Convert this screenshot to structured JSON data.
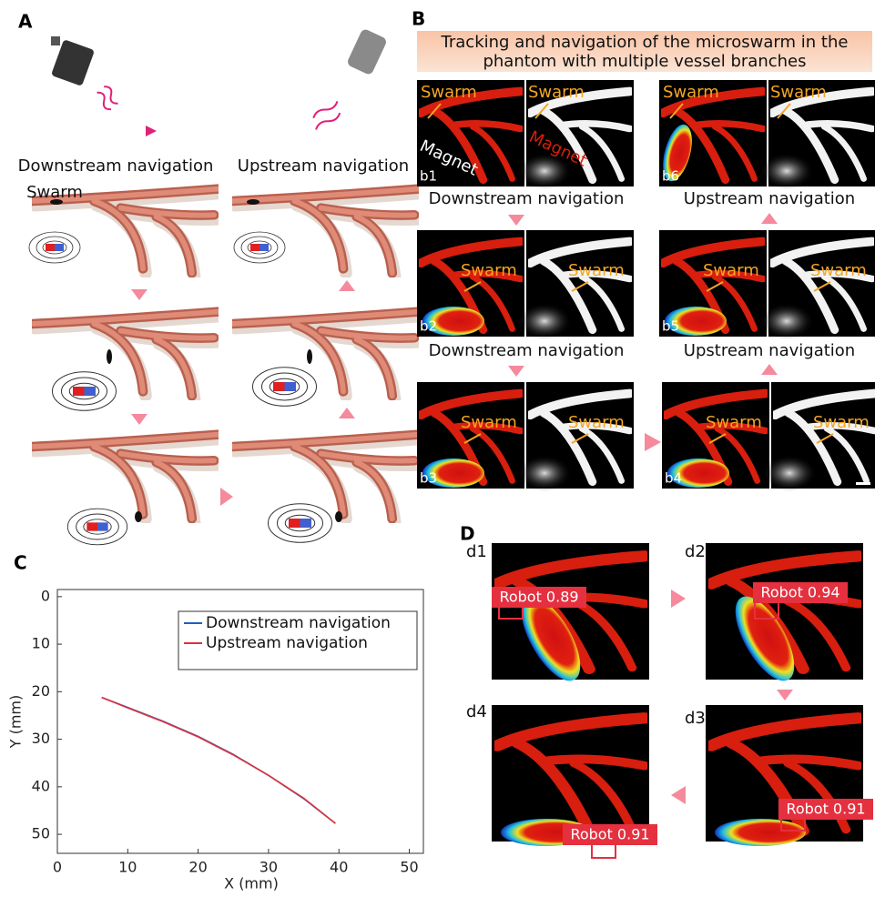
{
  "panel_labels": [
    "A",
    "B",
    "C",
    "D"
  ],
  "panel_a": {
    "downstream": "Downstream navigation",
    "upstream": "Upstream navigation",
    "swarm": "Swarm"
  },
  "panel_b": {
    "title_lines": [
      "Tracking and navigation of the microswarm in the",
      "phantom with multiple vessel branches"
    ],
    "frames": [
      {
        "label": "b1",
        "left": "Swarm",
        "right": "Swarm",
        "magnet_left": "Magnet",
        "magnet_right": "Magnet"
      },
      {
        "label": "b2",
        "left": "Swarm",
        "right": "Swarm"
      },
      {
        "label": "b3",
        "left": "Swarm",
        "right": "Swarm"
      },
      {
        "label": "b4",
        "left": "Swarm",
        "right": "Swarm"
      },
      {
        "label": "b5",
        "left": "Swarm",
        "right": "Swarm"
      },
      {
        "label": "b6",
        "left": "Swarm",
        "right": "Swarm"
      }
    ],
    "captions": [
      "Downstream navigation",
      "Upstream navigation",
      "Downstream navigation",
      "Upstream navigation"
    ]
  },
  "chart_data": {
    "type": "line",
    "xlabel": "X (mm)",
    "ylabel": "Y (mm)",
    "xlim": [
      0,
      52
    ],
    "ylim": [
      -1.5,
      54
    ],
    "y_inverted": true,
    "xticks": [
      0,
      10,
      20,
      30,
      40,
      50
    ],
    "yticks": [
      0,
      10,
      20,
      30,
      40,
      50
    ],
    "legend": "upper right",
    "series": [
      {
        "name": "Downstream navigation",
        "color": "#1f5fbf",
        "x": [
          6.3,
          10,
          15,
          20,
          25,
          30,
          35,
          39.5
        ],
        "values": [
          21.2,
          23.3,
          26.2,
          29.4,
          33.2,
          37.6,
          42.5,
          47.7
        ]
      },
      {
        "name": "Upstream navigation",
        "color": "#e0303a",
        "x": [
          6.3,
          10,
          15,
          20,
          25,
          30,
          35,
          39.5
        ],
        "values": [
          21.2,
          23.4,
          26.3,
          29.5,
          33.3,
          37.6,
          42.4,
          47.7
        ]
      }
    ]
  },
  "panel_d": {
    "frames": [
      {
        "label": "d1",
        "detection": "Robot 0.89"
      },
      {
        "label": "d2",
        "detection": "Robot 0.94"
      },
      {
        "label": "d3",
        "detection": "Robot 0.91"
      },
      {
        "label": "d4",
        "detection": "Robot 0.91"
      }
    ]
  }
}
